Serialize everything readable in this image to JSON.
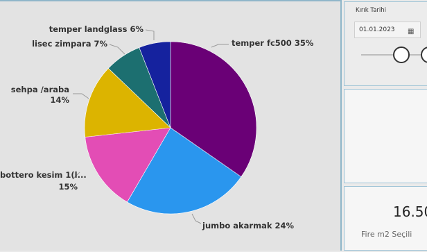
{
  "chart_data": {
    "type": "pie",
    "slices": [
      {
        "label": "temper fc500 35%",
        "value": 35,
        "color": "#6a0076"
      },
      {
        "label": "jumbo akarmak 24%",
        "value": 24,
        "color": "#2a96ee"
      },
      {
        "label": "bottero kesim 1(l...",
        "label2": "15%",
        "value": 15,
        "color": "#e34db5"
      },
      {
        "label": "sehpa /araba",
        "label2": "14%",
        "value": 14,
        "color": "#dcb400"
      },
      {
        "label": "lisec zimpara 7%",
        "value": 7,
        "color": "#1c6f70"
      },
      {
        "label": "temper landglass 6%",
        "value": 6,
        "color": "#15229e"
      }
    ]
  },
  "slicer": {
    "title": "Kırık Tarihi",
    "start_date": "01.01.2023",
    "calendar_icon": "calendar-icon"
  },
  "card": {
    "value": "16.50",
    "label": "Fire m2 Seçili"
  }
}
